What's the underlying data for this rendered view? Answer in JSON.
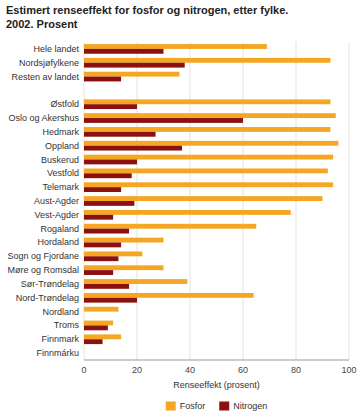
{
  "chart_data": {
    "type": "bar",
    "orientation": "horizontal",
    "title": "Estimert renseeffekt for fosfor og nitrogen, etter fylke.\n2002. Prosent",
    "xlabel": "Renseeffekt (prosent)",
    "categories": [
      "Hele landet",
      "Nordsjøfylkene",
      "Resten av landet",
      null,
      "Østfold",
      "Oslo og Akershus",
      "Hedmark",
      "Oppland",
      "Buskerud",
      "Vestfold",
      "Telemark",
      "Aust-Agder",
      "Vest-Agder",
      "Rogaland",
      "Hordaland",
      "Sogn og Fjordane",
      "Møre og Romsdal",
      "Sør-Trøndelag",
      "Nord-Trøndelag",
      "Nordland",
      "Troms",
      "Finnmark",
      "Finnmárku"
    ],
    "series": [
      {
        "name": "Fosfor",
        "color": "#F5A623",
        "values": [
          69,
          93,
          36,
          0,
          93,
          95,
          93,
          96,
          94,
          92,
          94,
          90,
          78,
          65,
          30,
          22,
          30,
          39,
          64,
          13,
          11,
          14,
          0
        ]
      },
      {
        "name": "Nitrogen",
        "color": "#8B1010",
        "values": [
          30,
          38,
          14,
          0,
          20,
          60,
          27,
          37,
          20,
          18,
          14,
          19,
          11,
          17,
          14,
          13,
          11,
          17,
          20,
          0,
          9,
          7,
          0
        ]
      }
    ],
    "xlim": [
      0,
      100
    ],
    "xticks": [
      0,
      20,
      40,
      60,
      80,
      100
    ],
    "grid": true,
    "legend": "bottom"
  }
}
